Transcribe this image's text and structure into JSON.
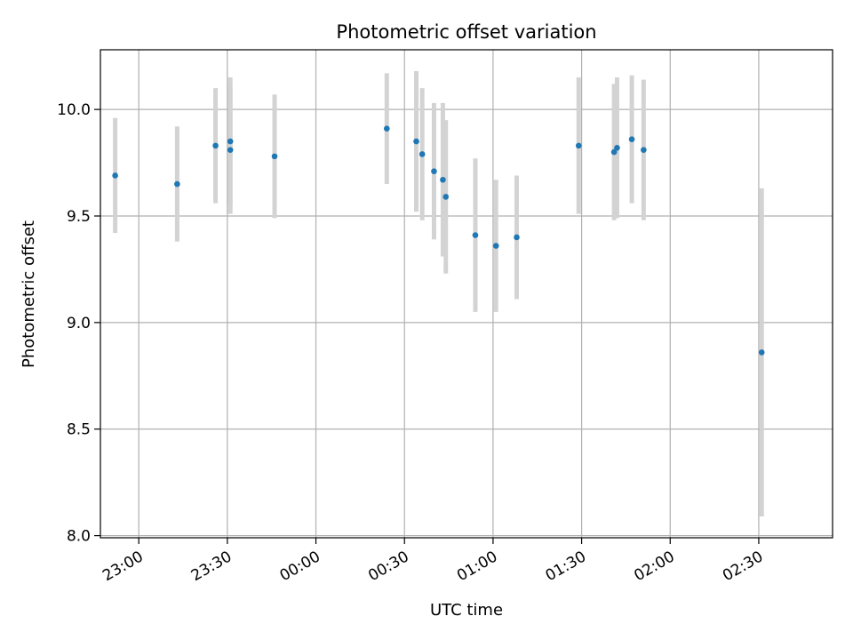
{
  "chart_data": {
    "type": "scatter",
    "title": "Photometric offset variation",
    "xlabel": "UTC time",
    "ylabel": "Photometric offset",
    "x_unit": "UTC time (HH:MM)",
    "xlim": [
      "22:47",
      "02:55"
    ],
    "ylim": [
      7.99,
      10.28
    ],
    "x_ticks": [
      "23:00",
      "23:30",
      "00:00",
      "00:30",
      "01:00",
      "01:30",
      "02:00",
      "02:30"
    ],
    "y_ticks": [
      "8.0",
      "8.5",
      "9.0",
      "9.5",
      "10.0"
    ],
    "y_tick_values": [
      8.0,
      8.5,
      9.0,
      9.5,
      10.0
    ],
    "grid": true,
    "legend": "none",
    "marker_color": "#1f77b4",
    "errorbar_color": "#d3d3d3",
    "points": [
      {
        "x": "22:52",
        "y": 9.69,
        "yerr": 0.27
      },
      {
        "x": "23:13",
        "y": 9.65,
        "yerr": 0.27
      },
      {
        "x": "23:26",
        "y": 9.83,
        "yerr": 0.27
      },
      {
        "x": "23:31",
        "y": 9.85,
        "yerr": 0.3
      },
      {
        "x": "23:31",
        "y": 9.81,
        "yerr": 0.3
      },
      {
        "x": "23:46",
        "y": 9.78,
        "yerr": 0.29
      },
      {
        "x": "00:24",
        "y": 9.91,
        "yerr": 0.26
      },
      {
        "x": "00:34",
        "y": 9.85,
        "yerr": 0.33
      },
      {
        "x": "00:36",
        "y": 9.79,
        "yerr": 0.31
      },
      {
        "x": "00:40",
        "y": 9.71,
        "yerr": 0.32
      },
      {
        "x": "00:43",
        "y": 9.67,
        "yerr": 0.36
      },
      {
        "x": "00:44",
        "y": 9.59,
        "yerr": 0.36
      },
      {
        "x": "00:54",
        "y": 9.41,
        "yerr": 0.36
      },
      {
        "x": "01:01",
        "y": 9.36,
        "yerr": 0.31
      },
      {
        "x": "01:08",
        "y": 9.4,
        "yerr": 0.29
      },
      {
        "x": "01:29",
        "y": 9.83,
        "yerr": 0.32
      },
      {
        "x": "01:41",
        "y": 9.8,
        "yerr": 0.32
      },
      {
        "x": "01:42",
        "y": 9.82,
        "yerr": 0.33
      },
      {
        "x": "01:47",
        "y": 9.86,
        "yerr": 0.3
      },
      {
        "x": "01:51",
        "y": 9.81,
        "yerr": 0.33
      },
      {
        "x": "02:31",
        "y": 8.86,
        "yerr": 0.77
      }
    ]
  }
}
